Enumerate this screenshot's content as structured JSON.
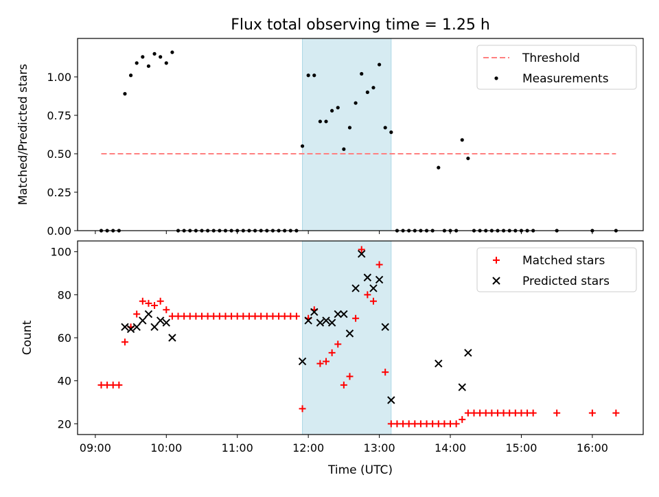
{
  "chart_data": [
    {
      "type": "scatter",
      "title": "Flux total observing time = 1.25 h",
      "xlabel": "",
      "ylabel": "Matched/Predicted stars",
      "xlim": [
        "08:45",
        "16:43"
      ],
      "ylim": [
        0,
        1.25
      ],
      "yticks": [
        "0.00",
        "0.25",
        "0.50",
        "0.75",
        "1.00"
      ],
      "yticks_values": [
        0,
        0.25,
        0.5,
        0.75,
        1.0
      ],
      "grid": false,
      "legend_position": "upper right",
      "shaded_interval": [
        "11:55",
        "13:10"
      ],
      "series": [
        {
          "name": "Threshold",
          "style": "dashed-line",
          "color": "#ff7f7f",
          "points": [
            [
              "09:05",
              0.5
            ],
            [
              "16:20",
              0.5
            ]
          ]
        },
        {
          "name": "Measurements",
          "style": "dot",
          "color": "#000000",
          "points": [
            [
              "09:05",
              0
            ],
            [
              "09:10",
              0
            ],
            [
              "09:15",
              0
            ],
            [
              "09:20",
              0
            ],
            [
              "09:25",
              0.89
            ],
            [
              "09:30",
              1.01
            ],
            [
              "09:35",
              1.09
            ],
            [
              "09:40",
              1.13
            ],
            [
              "09:45",
              1.07
            ],
            [
              "09:50",
              1.15
            ],
            [
              "09:55",
              1.13
            ],
            [
              "10:00",
              1.09
            ],
            [
              "10:05",
              1.16
            ],
            [
              "10:10",
              0
            ],
            [
              "10:15",
              0
            ],
            [
              "10:20",
              0
            ],
            [
              "10:25",
              0
            ],
            [
              "10:30",
              0
            ],
            [
              "10:35",
              0
            ],
            [
              "10:40",
              0
            ],
            [
              "10:45",
              0
            ],
            [
              "10:50",
              0
            ],
            [
              "10:55",
              0
            ],
            [
              "11:00",
              0
            ],
            [
              "11:05",
              0
            ],
            [
              "11:10",
              0
            ],
            [
              "11:15",
              0
            ],
            [
              "11:20",
              0
            ],
            [
              "11:25",
              0
            ],
            [
              "11:30",
              0
            ],
            [
              "11:35",
              0
            ],
            [
              "11:40",
              0
            ],
            [
              "11:45",
              0
            ],
            [
              "11:50",
              0
            ],
            [
              "11:55",
              0.55
            ],
            [
              "12:00",
              1.01
            ],
            [
              "12:05",
              1.01
            ],
            [
              "12:10",
              0.71
            ],
            [
              "12:15",
              0.71
            ],
            [
              "12:20",
              0.78
            ],
            [
              "12:25",
              0.8
            ],
            [
              "12:30",
              0.53
            ],
            [
              "12:35",
              0.67
            ],
            [
              "12:40",
              0.83
            ],
            [
              "12:45",
              1.02
            ],
            [
              "12:50",
              0.9
            ],
            [
              "12:55",
              0.93
            ],
            [
              "13:00",
              1.08
            ],
            [
              "13:05",
              0.67
            ],
            [
              "13:10",
              0.64
            ],
            [
              "13:15",
              0
            ],
            [
              "13:20",
              0
            ],
            [
              "13:25",
              0
            ],
            [
              "13:30",
              0
            ],
            [
              "13:35",
              0
            ],
            [
              "13:40",
              0
            ],
            [
              "13:45",
              0
            ],
            [
              "13:50",
              0.41
            ],
            [
              "13:55",
              0
            ],
            [
              "14:00",
              0
            ],
            [
              "14:05",
              0
            ],
            [
              "14:10",
              0.59
            ],
            [
              "14:15",
              0.47
            ],
            [
              "14:20",
              0
            ],
            [
              "14:25",
              0
            ],
            [
              "14:30",
              0
            ],
            [
              "14:35",
              0
            ],
            [
              "14:40",
              0
            ],
            [
              "14:45",
              0
            ],
            [
              "14:50",
              0
            ],
            [
              "14:55",
              0
            ],
            [
              "15:00",
              0
            ],
            [
              "15:05",
              0
            ],
            [
              "15:10",
              0
            ],
            [
              "15:30",
              0
            ],
            [
              "16:00",
              0
            ],
            [
              "16:20",
              0
            ]
          ]
        }
      ]
    },
    {
      "type": "scatter",
      "title": "",
      "xlabel": "Time (UTC)",
      "ylabel": "Count",
      "xlim": [
        "08:45",
        "16:43"
      ],
      "ylim": [
        15,
        105
      ],
      "yticks": [
        "20",
        "40",
        "60",
        "80",
        "100"
      ],
      "yticks_values": [
        20,
        40,
        60,
        80,
        100
      ],
      "xticks": [
        "09:00",
        "10:00",
        "11:00",
        "12:00",
        "13:00",
        "14:00",
        "15:00",
        "16:00"
      ],
      "grid": false,
      "legend_position": "upper right",
      "shaded_interval": [
        "11:55",
        "13:10"
      ],
      "series": [
        {
          "name": "Matched stars",
          "style": "plus",
          "color": "#ff0000",
          "points": [
            [
              "09:05",
              38
            ],
            [
              "09:10",
              38
            ],
            [
              "09:15",
              38
            ],
            [
              "09:20",
              38
            ],
            [
              "09:25",
              58
            ],
            [
              "09:30",
              65
            ],
            [
              "09:35",
              71
            ],
            [
              "09:40",
              77
            ],
            [
              "09:45",
              76
            ],
            [
              "09:50",
              75
            ],
            [
              "09:55",
              77
            ],
            [
              "10:00",
              73
            ],
            [
              "10:05",
              70
            ],
            [
              "10:10",
              70
            ],
            [
              "10:15",
              70
            ],
            [
              "10:20",
              70
            ],
            [
              "10:25",
              70
            ],
            [
              "10:30",
              70
            ],
            [
              "10:35",
              70
            ],
            [
              "10:40",
              70
            ],
            [
              "10:45",
              70
            ],
            [
              "10:50",
              70
            ],
            [
              "10:55",
              70
            ],
            [
              "11:00",
              70
            ],
            [
              "11:05",
              70
            ],
            [
              "11:10",
              70
            ],
            [
              "11:15",
              70
            ],
            [
              "11:20",
              70
            ],
            [
              "11:25",
              70
            ],
            [
              "11:30",
              70
            ],
            [
              "11:35",
              70
            ],
            [
              "11:40",
              70
            ],
            [
              "11:45",
              70
            ],
            [
              "11:50",
              70
            ],
            [
              "11:55",
              27
            ],
            [
              "12:00",
              69
            ],
            [
              "12:05",
              73
            ],
            [
              "12:10",
              48
            ],
            [
              "12:15",
              49
            ],
            [
              "12:20",
              53
            ],
            [
              "12:25",
              57
            ],
            [
              "12:30",
              38
            ],
            [
              "12:35",
              42
            ],
            [
              "12:40",
              69
            ],
            [
              "12:45",
              101
            ],
            [
              "12:50",
              80
            ],
            [
              "12:55",
              77
            ],
            [
              "13:00",
              94
            ],
            [
              "13:05",
              44
            ],
            [
              "13:10",
              20
            ],
            [
              "13:15",
              20
            ],
            [
              "13:20",
              20
            ],
            [
              "13:25",
              20
            ],
            [
              "13:30",
              20
            ],
            [
              "13:35",
              20
            ],
            [
              "13:40",
              20
            ],
            [
              "13:45",
              20
            ],
            [
              "13:50",
              20
            ],
            [
              "13:55",
              20
            ],
            [
              "14:00",
              20
            ],
            [
              "14:05",
              20
            ],
            [
              "14:10",
              22
            ],
            [
              "14:15",
              25
            ],
            [
              "14:20",
              25
            ],
            [
              "14:25",
              25
            ],
            [
              "14:30",
              25
            ],
            [
              "14:35",
              25
            ],
            [
              "14:40",
              25
            ],
            [
              "14:45",
              25
            ],
            [
              "14:50",
              25
            ],
            [
              "14:55",
              25
            ],
            [
              "15:00",
              25
            ],
            [
              "15:05",
              25
            ],
            [
              "15:10",
              25
            ],
            [
              "15:30",
              25
            ],
            [
              "16:00",
              25
            ],
            [
              "16:20",
              25
            ]
          ]
        },
        {
          "name": "Predicted stars",
          "style": "x",
          "color": "#000000",
          "points": [
            [
              "09:25",
              65
            ],
            [
              "09:30",
              64
            ],
            [
              "09:35",
              65
            ],
            [
              "09:40",
              68
            ],
            [
              "09:45",
              71
            ],
            [
              "09:50",
              65
            ],
            [
              "09:55",
              68
            ],
            [
              "10:00",
              67
            ],
            [
              "10:05",
              60
            ],
            [
              "11:55",
              49
            ],
            [
              "12:00",
              68
            ],
            [
              "12:05",
              72
            ],
            [
              "12:10",
              67
            ],
            [
              "12:15",
              68
            ],
            [
              "12:20",
              67
            ],
            [
              "12:25",
              71
            ],
            [
              "12:30",
              71
            ],
            [
              "12:35",
              62
            ],
            [
              "12:40",
              83
            ],
            [
              "12:45",
              99
            ],
            [
              "12:50",
              88
            ],
            [
              "12:55",
              83
            ],
            [
              "13:00",
              87
            ],
            [
              "13:05",
              65
            ],
            [
              "13:10",
              31
            ],
            [
              "13:50",
              48
            ],
            [
              "14:10",
              37
            ],
            [
              "14:15",
              53
            ]
          ]
        }
      ]
    }
  ]
}
